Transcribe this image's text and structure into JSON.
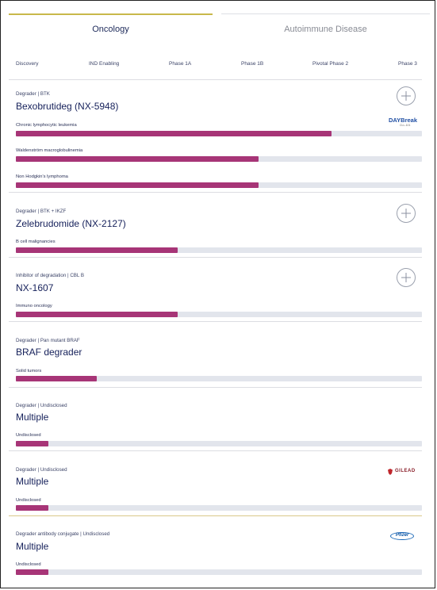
{
  "tabs": [
    {
      "label": "Oncology",
      "active": true
    },
    {
      "label": "Autoimmune Disease",
      "active": false
    }
  ],
  "phases": [
    "Discovery",
    "IND Enabling",
    "Phase 1A",
    "Phase 1B",
    "Pivotal Phase 2",
    "Phase 3"
  ],
  "colors": {
    "progress": "#a73577",
    "track": "#e2e5ec",
    "active_tab_line": "#c8b84a"
  },
  "programs": [
    {
      "meta": "Degrader | BTK",
      "name": "Bexobrutideg (NX-5948)",
      "expand_icon": "plus-circle-icon",
      "partner": "DAYBreak",
      "partner_sub": "CLL-101",
      "indications": [
        {
          "label": "Chronic lymphocytic leukemia",
          "progress": 0.777
        },
        {
          "label": "Waldenström macroglobulinemia",
          "progress": 0.598
        },
        {
          "label": "Non Hodgkin's lymphoma",
          "progress": 0.598
        }
      ]
    },
    {
      "meta": "Degrader | BTK + IKZF",
      "name": "Zelebrudomide (NX-2127)",
      "expand_icon": "plus-circle-icon",
      "indications": [
        {
          "label": "B cell malignancies",
          "progress": 0.398
        }
      ]
    },
    {
      "meta": "Inhibitor of degradation | CBL B",
      "name": "NX-1607",
      "expand_icon": "plus-circle-icon",
      "indications": [
        {
          "label": "Immuno oncology",
          "progress": 0.398
        }
      ]
    },
    {
      "meta": "Degrader | Pan mutant BRAF",
      "name": "BRAF degrader",
      "indications": [
        {
          "label": "Solid tumors",
          "progress": 0.199
        }
      ]
    },
    {
      "meta": "Degrader | Undisclosed",
      "name": "Multiple",
      "indications": [
        {
          "label": "Undisclosed",
          "progress": 0.08
        }
      ]
    },
    {
      "meta": "Degrader | Undisclosed",
      "name": "Multiple",
      "partner": "GILEAD",
      "indications": [
        {
          "label": "Undisclosed",
          "progress": 0.08
        }
      ]
    },
    {
      "meta": "Degrader antibody conjugate | Undisclosed",
      "name": "Multiple",
      "partner": "Pfizer",
      "indications": [
        {
          "label": "Undisclosed",
          "progress": 0.08
        }
      ]
    }
  ]
}
